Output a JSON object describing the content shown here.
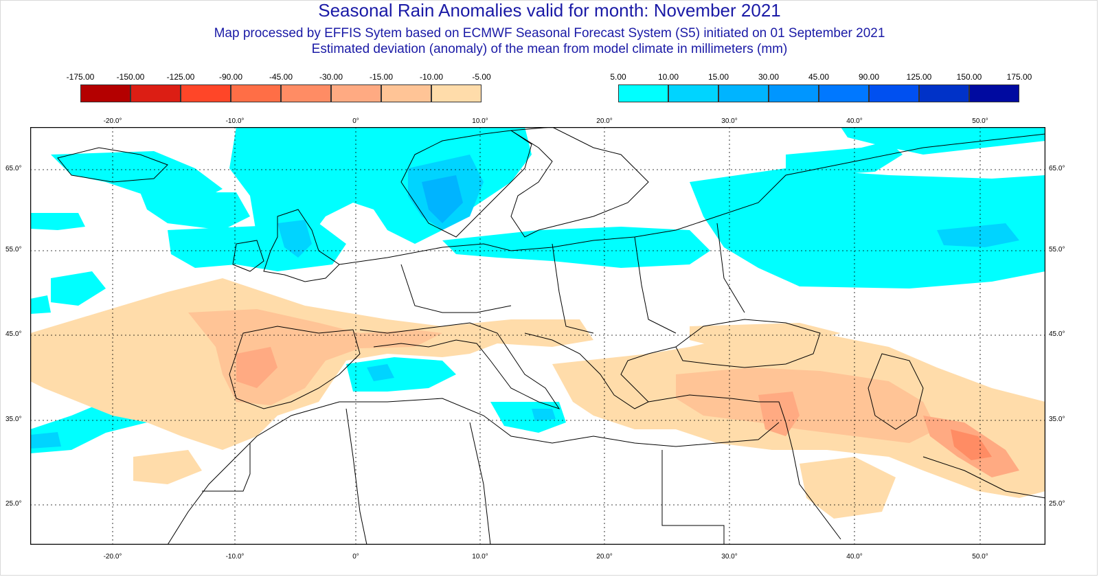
{
  "title": "Seasonal Rain Anomalies valid for month: November 2021",
  "subtitle_1": "Map processed by EFFIS Sytem based on ECMWF Seasonal Forecast System (S5) initiated on 01 September 2021",
  "subtitle_2": "Estimated deviation (anomaly) of the mean from model climate in millimeters (mm)",
  "legend": {
    "negative": {
      "ticks": [
        "-175.00",
        "-150.00",
        "-125.00",
        "-90.00",
        "-45.00",
        "-30.00",
        "-15.00",
        "-10.00",
        "-5.00"
      ],
      "colors": [
        "#b40000",
        "#dc1e14",
        "#ff4628",
        "#ff6e46",
        "#ff8c64",
        "#ffaa82",
        "#ffc496",
        "#ffdcaa"
      ]
    },
    "positive": {
      "ticks": [
        "5.00",
        "10.00",
        "15.00",
        "30.00",
        "45.00",
        "90.00",
        "125.00",
        "150.00",
        "175.00"
      ],
      "colors": [
        "#00ffff",
        "#00d4ff",
        "#00b4ff",
        "#0096ff",
        "#0078ff",
        "#0050f0",
        "#0032c8",
        "#000aa0"
      ]
    }
  },
  "map": {
    "lon_labels": [
      "-20.0°",
      "-10.0°",
      "0°",
      "10.0°",
      "20.0°",
      "30.0°",
      "40.0°",
      "50.0°"
    ],
    "lat_labels": [
      "65.0°",
      "55.0°",
      "45.0°",
      "35.0°",
      "25.0°"
    ]
  }
}
